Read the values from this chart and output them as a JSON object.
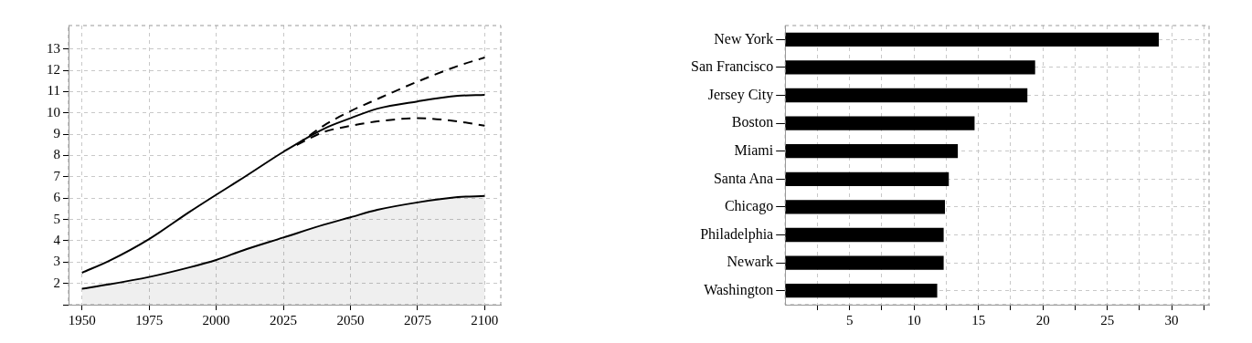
{
  "chart_data": [
    {
      "type": "line",
      "xlim": [
        1945,
        2106
      ],
      "ylim": [
        1,
        14.1
      ],
      "xticks": [
        1950,
        1975,
        2000,
        2025,
        2050,
        2075,
        2100
      ],
      "yticks": [
        {
          "value": 1,
          "label": null
        },
        2,
        3,
        4,
        5,
        6,
        7,
        8,
        9,
        10,
        11,
        12,
        13
      ],
      "grid": true,
      "legend": false,
      "marker": "none",
      "series": [
        {
          "color": "#000000",
          "type": "area",
          "x": [
            1950,
            1960,
            1975,
            1990,
            2000,
            2010,
            2025,
            2040,
            2050,
            2060,
            2075,
            2090,
            2100
          ],
          "values": [
            1.75,
            1.95,
            2.3,
            2.75,
            3.1,
            3.55,
            4.15,
            4.75,
            5.1,
            5.45,
            5.8,
            6.05,
            6.1
          ]
        },
        {
          "color": "#000000",
          "line_style": "solid",
          "x": [
            1950,
            1960,
            1975,
            1990,
            2000,
            2010,
            2025,
            2040,
            2050,
            2060,
            2075,
            2090,
            2100
          ],
          "values": [
            2.5,
            3.05,
            4.08,
            5.35,
            6.16,
            6.95,
            8.17,
            9.25,
            9.75,
            10.2,
            10.54,
            10.8,
            10.85
          ]
        },
        {
          "color": "#000000",
          "line_style": "dashed",
          "x": [
            2030,
            2040,
            2050,
            2060,
            2075,
            2090,
            2100
          ],
          "values": [
            8.5,
            9.4,
            10.08,
            10.65,
            11.47,
            12.2,
            12.6
          ]
        },
        {
          "color": "#000000",
          "line_style": "dashed",
          "x": [
            2030,
            2040,
            2050,
            2060,
            2075,
            2090,
            2100
          ],
          "values": [
            8.5,
            9.1,
            9.39,
            9.6,
            9.75,
            9.6,
            9.4
          ]
        }
      ]
    },
    {
      "type": "bar",
      "orientation": "horizontal",
      "categories": [
        "New York",
        "San Francisco",
        "Jersey City",
        "Boston",
        "Miami",
        "Santa Ana",
        "Chicago",
        "Philadelphia",
        "Newark",
        "Washington"
      ],
      "values": [
        29.0,
        19.4,
        18.8,
        14.7,
        13.4,
        12.7,
        12.4,
        12.3,
        12.3,
        11.8
      ],
      "color": "#000000",
      "xlim": [
        0,
        32.9
      ],
      "xticks": [
        {
          "value": 2.5,
          "label": null
        },
        5,
        {
          "value": 7.5,
          "label": null
        },
        10,
        {
          "value": 12.5,
          "label": null
        },
        15,
        {
          "value": 17.5,
          "label": null
        },
        20,
        {
          "value": 22.5,
          "label": null
        },
        25,
        {
          "value": 27.5,
          "label": null
        },
        30,
        {
          "value": 32.5,
          "label": null
        }
      ],
      "grid": true,
      "legend": false
    }
  ]
}
